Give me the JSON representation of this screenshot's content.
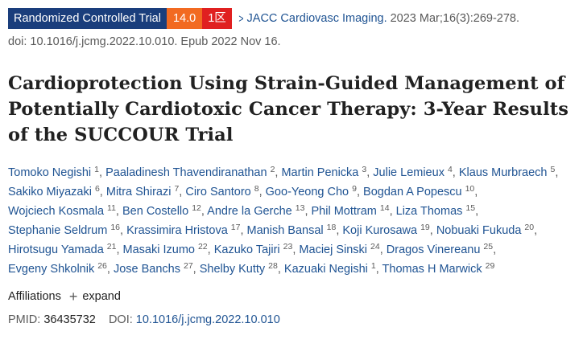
{
  "badges": {
    "article_type": "Randomized Controlled Trial",
    "impact_factor": "14.0",
    "zone": "1区"
  },
  "citation": {
    "journal": "JACC Cardiovasc Imaging.",
    "details": "2023 Mar;16(3):269-278.",
    "doi_line": "doi: 10.1016/j.jcmg.2022.10.010. Epub 2022 Nov 16."
  },
  "title": "Cardioprotection Using Strain-Guided Management of Potentially Cardiotoxic Cancer Therapy: 3-Year Results of the SUCCOUR Trial",
  "authors": [
    {
      "name": "Tomoko Negishi",
      "aff": "1"
    },
    {
      "name": "Paaladinesh Thavendiranathan",
      "aff": "2"
    },
    {
      "name": "Martin Penicka",
      "aff": "3"
    },
    {
      "name": "Julie Lemieux",
      "aff": "4"
    },
    {
      "name": "Klaus Murbraech",
      "aff": "5"
    },
    {
      "name": "Sakiko Miyazaki",
      "aff": "6"
    },
    {
      "name": "Mitra Shirazi",
      "aff": "7"
    },
    {
      "name": "Ciro Santoro",
      "aff": "8"
    },
    {
      "name": "Goo-Yeong Cho",
      "aff": "9"
    },
    {
      "name": "Bogdan A Popescu",
      "aff": "10"
    },
    {
      "name": "Wojciech Kosmala",
      "aff": "11"
    },
    {
      "name": "Ben Costello",
      "aff": "12"
    },
    {
      "name": "Andre la Gerche",
      "aff": "13"
    },
    {
      "name": "Phil Mottram",
      "aff": "14"
    },
    {
      "name": "Liza Thomas",
      "aff": "15"
    },
    {
      "name": "Stephanie Seldrum",
      "aff": "16"
    },
    {
      "name": "Krassimira Hristova",
      "aff": "17"
    },
    {
      "name": "Manish Bansal",
      "aff": "18"
    },
    {
      "name": "Koji Kurosawa",
      "aff": "19"
    },
    {
      "name": "Nobuaki Fukuda",
      "aff": "20"
    },
    {
      "name": "Hirotsugu Yamada",
      "aff": "21"
    },
    {
      "name": "Masaki Izumo",
      "aff": "22"
    },
    {
      "name": "Kazuko Tajiri",
      "aff": "23"
    },
    {
      "name": "Maciej Sinski",
      "aff": "24"
    },
    {
      "name": "Dragos Vinereanu",
      "aff": "25"
    },
    {
      "name": "Evgeny Shkolnik",
      "aff": "26"
    },
    {
      "name": "Jose Banchs",
      "aff": "27"
    },
    {
      "name": "Shelby Kutty",
      "aff": "28"
    },
    {
      "name": "Kazuaki Negishi",
      "aff": "1"
    },
    {
      "name": "Thomas H Marwick",
      "aff": "29"
    }
  ],
  "affiliations": {
    "label": "Affiliations",
    "expand_icon": "+",
    "expand_label": "expand"
  },
  "identifiers": {
    "pmid_label": "PMID:",
    "pmid": "36435732",
    "doi_label": "DOI:",
    "doi": "10.1016/j.jcmg.2022.10.010"
  },
  "icons": {
    "chevron": "chevron-right-icon",
    "expand": "plus-icon"
  },
  "colors": {
    "article_type_bg": "#1a3e7c",
    "impact_factor_bg": "#f26a21",
    "zone_bg": "#e02020",
    "link": "#205493"
  }
}
